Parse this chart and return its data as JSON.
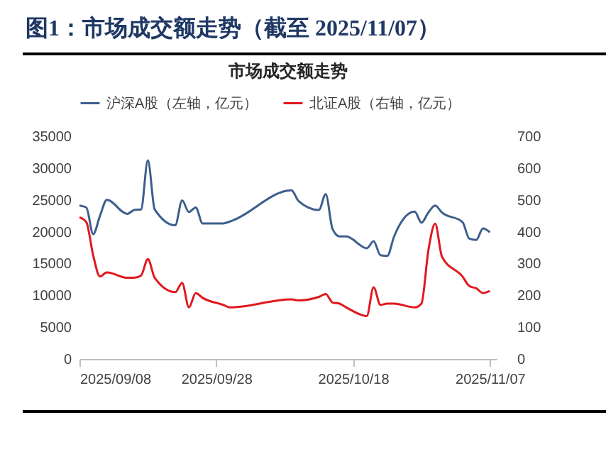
{
  "chart_data": {
    "type": "line",
    "title": "图1：市场成交额走势（截至 2025/11/07）",
    "subtitle": "市场成交额走势",
    "x": [
      "2025-09-08",
      "2025-09-09",
      "2025-09-10",
      "2025-09-11",
      "2025-09-12",
      "2025-09-15",
      "2025-09-16",
      "2025-09-17",
      "2025-09-18",
      "2025-09-19",
      "2025-09-22",
      "2025-09-23",
      "2025-09-24",
      "2025-09-25",
      "2025-09-26",
      "2025-09-29",
      "2025-09-30",
      "2025-10-09",
      "2025-10-10",
      "2025-10-13",
      "2025-10-14",
      "2025-10-15",
      "2025-10-16",
      "2025-10-17",
      "2025-10-20",
      "2025-10-21",
      "2025-10-22",
      "2025-10-23",
      "2025-10-24",
      "2025-10-27",
      "2025-10-28",
      "2025-10-29",
      "2025-10-30",
      "2025-10-31",
      "2025-11-03",
      "2025-11-04",
      "2025-11-05",
      "2025-11-06",
      "2025-11-07"
    ],
    "series": [
      {
        "name": "沪深A股（左轴，亿元）",
        "color": "#3d5f8c",
        "values": [
          24100,
          23800,
          19600,
          22500,
          25000,
          22800,
          23400,
          23500,
          31200,
          23500,
          21000,
          24900,
          23100,
          23800,
          21300,
          21300,
          21600,
          26500,
          24850,
          23400,
          25900,
          20400,
          19250,
          19250,
          17400,
          18500,
          16300,
          16200,
          19250,
          23150,
          21400,
          23000,
          24100,
          23000,
          21500,
          18900,
          18700,
          20500,
          19900
        ]
      },
      {
        "name": "北证A股（右轴，亿元）",
        "color": "#e0191f",
        "axis": "y2",
        "values": [
          445,
          430,
          326,
          259,
          272,
          255,
          255,
          262,
          314,
          255,
          210,
          239,
          162,
          207,
          192,
          170,
          162,
          187,
          184,
          195,
          204,
          177,
          174,
          162,
          135,
          225,
          170,
          174,
          174,
          162,
          174,
          340,
          425,
          321,
          259,
          229,
          222,
          207,
          214
        ]
      }
    ],
    "xlim": [
      "2025-09-08",
      "2025-11-08"
    ],
    "xticks": [
      {
        "value": "2025-09-08",
        "label": "2025/09/08"
      },
      {
        "value": "2025-09-28",
        "label": "2025/09/28"
      },
      {
        "value": "2025-10-18",
        "label": "2025/10/18"
      },
      {
        "value": "2025-11-07",
        "label": "2025/11/07"
      }
    ],
    "ylim": [
      0,
      35000
    ],
    "yticks": [
      0,
      5000,
      10000,
      15000,
      20000,
      25000,
      30000,
      35000
    ],
    "y2lim": [
      0,
      700
    ],
    "y2ticks": [
      0,
      100,
      200,
      300,
      400,
      500,
      600,
      700
    ],
    "legend": "top",
    "grid": false
  }
}
